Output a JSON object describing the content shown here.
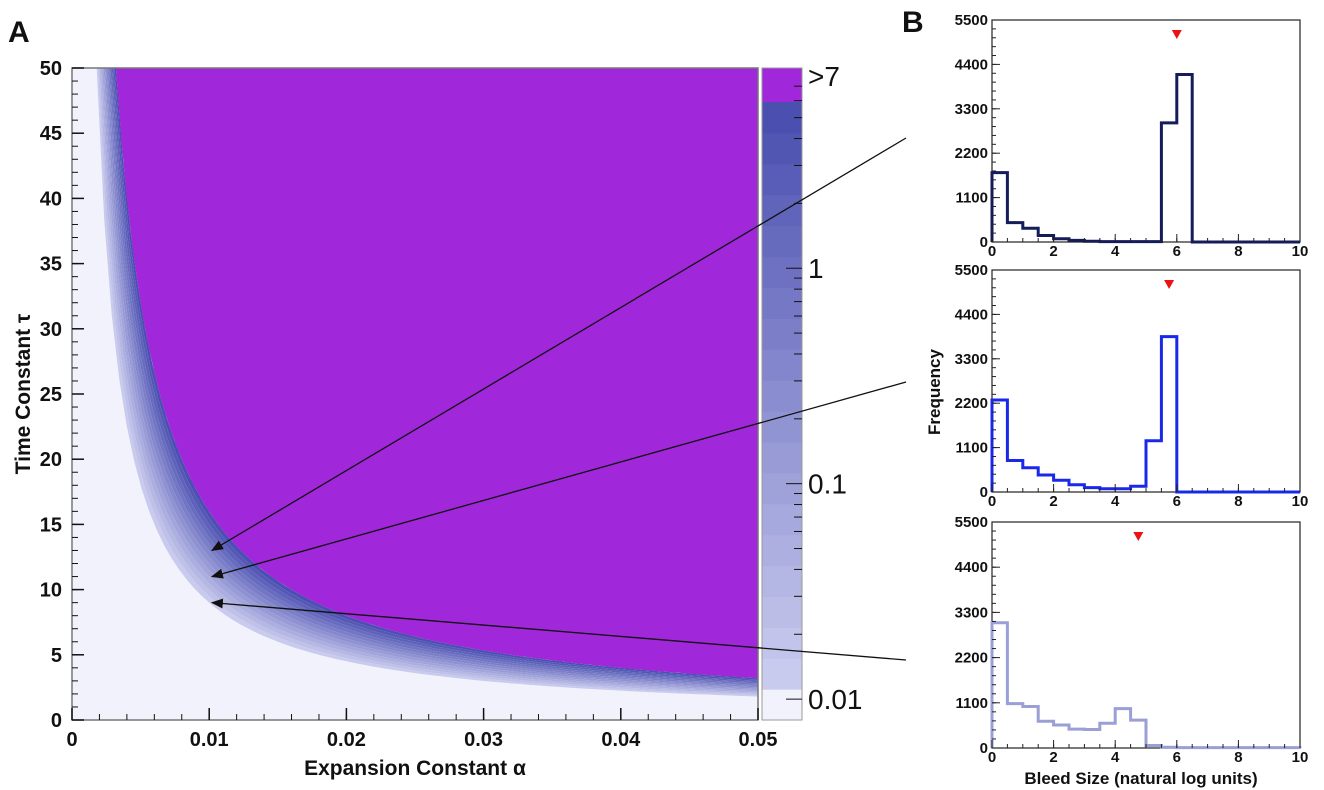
{
  "colors": {
    "region_background": "#f2f2fd",
    "band_light": "#c9cbee",
    "band_dark": "#4b4fb0",
    "saturated": "#a127da",
    "marker": "#ee1111",
    "hist1": "#141c5a",
    "hist2": "#1a28e8",
    "hist3": "#9a9fd6"
  },
  "chart_data": [
    {
      "panel": "A",
      "type": "heatmap",
      "xlabel": "Expansion Constant α",
      "ylabel": "Time Constant τ",
      "xlim": [
        0,
        0.05
      ],
      "ylim": [
        0,
        50
      ],
      "x_ticks": [
        "0",
        "0.01",
        "0.02",
        "0.03",
        "0.04",
        "0.05"
      ],
      "y_ticks": [
        "0",
        "5",
        "10",
        "15",
        "20",
        "25",
        "30",
        "35",
        "40",
        "45",
        "50"
      ],
      "colorbar": {
        "scale": "log",
        "labels": [
          "0.01",
          "0.1",
          "1",
          ">7"
        ],
        "label_values": [
          0.01,
          0.1,
          1,
          7
        ]
      },
      "band": {
        "inner_boundary_alpha_tau": 0.09,
        "outer_boundary_alpha_tau": 0.16
      },
      "arrows": [
        {
          "to": [
            0.0102,
            13.0
          ]
        },
        {
          "to": [
            0.0102,
            11.0
          ]
        },
        {
          "to": [
            0.0102,
            9.0
          ]
        }
      ]
    },
    {
      "panel": "B",
      "type": "bar",
      "subplots": [
        {
          "xlim": [
            0,
            10
          ],
          "ylim": [
            0,
            5500
          ],
          "x_ticks": [
            "0",
            "2",
            "4",
            "6",
            "8",
            "10"
          ],
          "y_ticks": [
            "0",
            "1100",
            "2200",
            "3300",
            "4400",
            "5500"
          ],
          "bin_edges": [
            0,
            0.5,
            1,
            1.5,
            2,
            2.5,
            3,
            3.5,
            4,
            4.5,
            5,
            5.5,
            6,
            6.5,
            7,
            7.5,
            8,
            8.5,
            9,
            9.5,
            10
          ],
          "values": [
            1720,
            480,
            340,
            160,
            80,
            40,
            20,
            10,
            10,
            10,
            10,
            2950,
            4150,
            0,
            0,
            0,
            0,
            0,
            0,
            0
          ],
          "marker_x": 6.0
        },
        {
          "xlim": [
            0,
            10
          ],
          "ylim": [
            0,
            5500
          ],
          "x_ticks": [
            "0",
            "2",
            "4",
            "6",
            "8",
            "10"
          ],
          "y_ticks": [
            "0",
            "1100",
            "2200",
            "3300",
            "4400",
            "5500"
          ],
          "bin_edges": [
            0,
            0.5,
            1,
            1.5,
            2,
            2.5,
            3,
            3.5,
            4,
            4.5,
            5,
            5.5,
            6,
            6.5,
            7,
            7.5,
            8,
            8.5,
            9,
            9.5,
            10
          ],
          "values": [
            2280,
            780,
            600,
            420,
            290,
            180,
            110,
            80,
            80,
            140,
            1270,
            3850,
            0,
            0,
            0,
            0,
            0,
            0,
            0,
            0
          ],
          "marker_x": 5.75
        },
        {
          "xlim": [
            0,
            10
          ],
          "ylim": [
            0,
            5500
          ],
          "x_ticks": [
            "0",
            "2",
            "4",
            "6",
            "8",
            "10"
          ],
          "y_ticks": [
            "0",
            "1100",
            "2200",
            "3300",
            "4400",
            "5500"
          ],
          "bin_edges": [
            0,
            0.5,
            1,
            1.5,
            2,
            2.5,
            3,
            3.5,
            4,
            4.5,
            5,
            5.5,
            6,
            6.5,
            7,
            7.5,
            8,
            8.5,
            9,
            9.5,
            10
          ],
          "values": [
            3050,
            1080,
            1010,
            650,
            560,
            460,
            450,
            600,
            960,
            680,
            60,
            20,
            10,
            10,
            10,
            10,
            10,
            10,
            10,
            10
          ],
          "marker_x": 4.75
        }
      ],
      "ylabel": "Frequency",
      "xlabel": "Bleed Size (natural log units)"
    }
  ],
  "panel_labels": {
    "a": "A",
    "b": "B"
  }
}
